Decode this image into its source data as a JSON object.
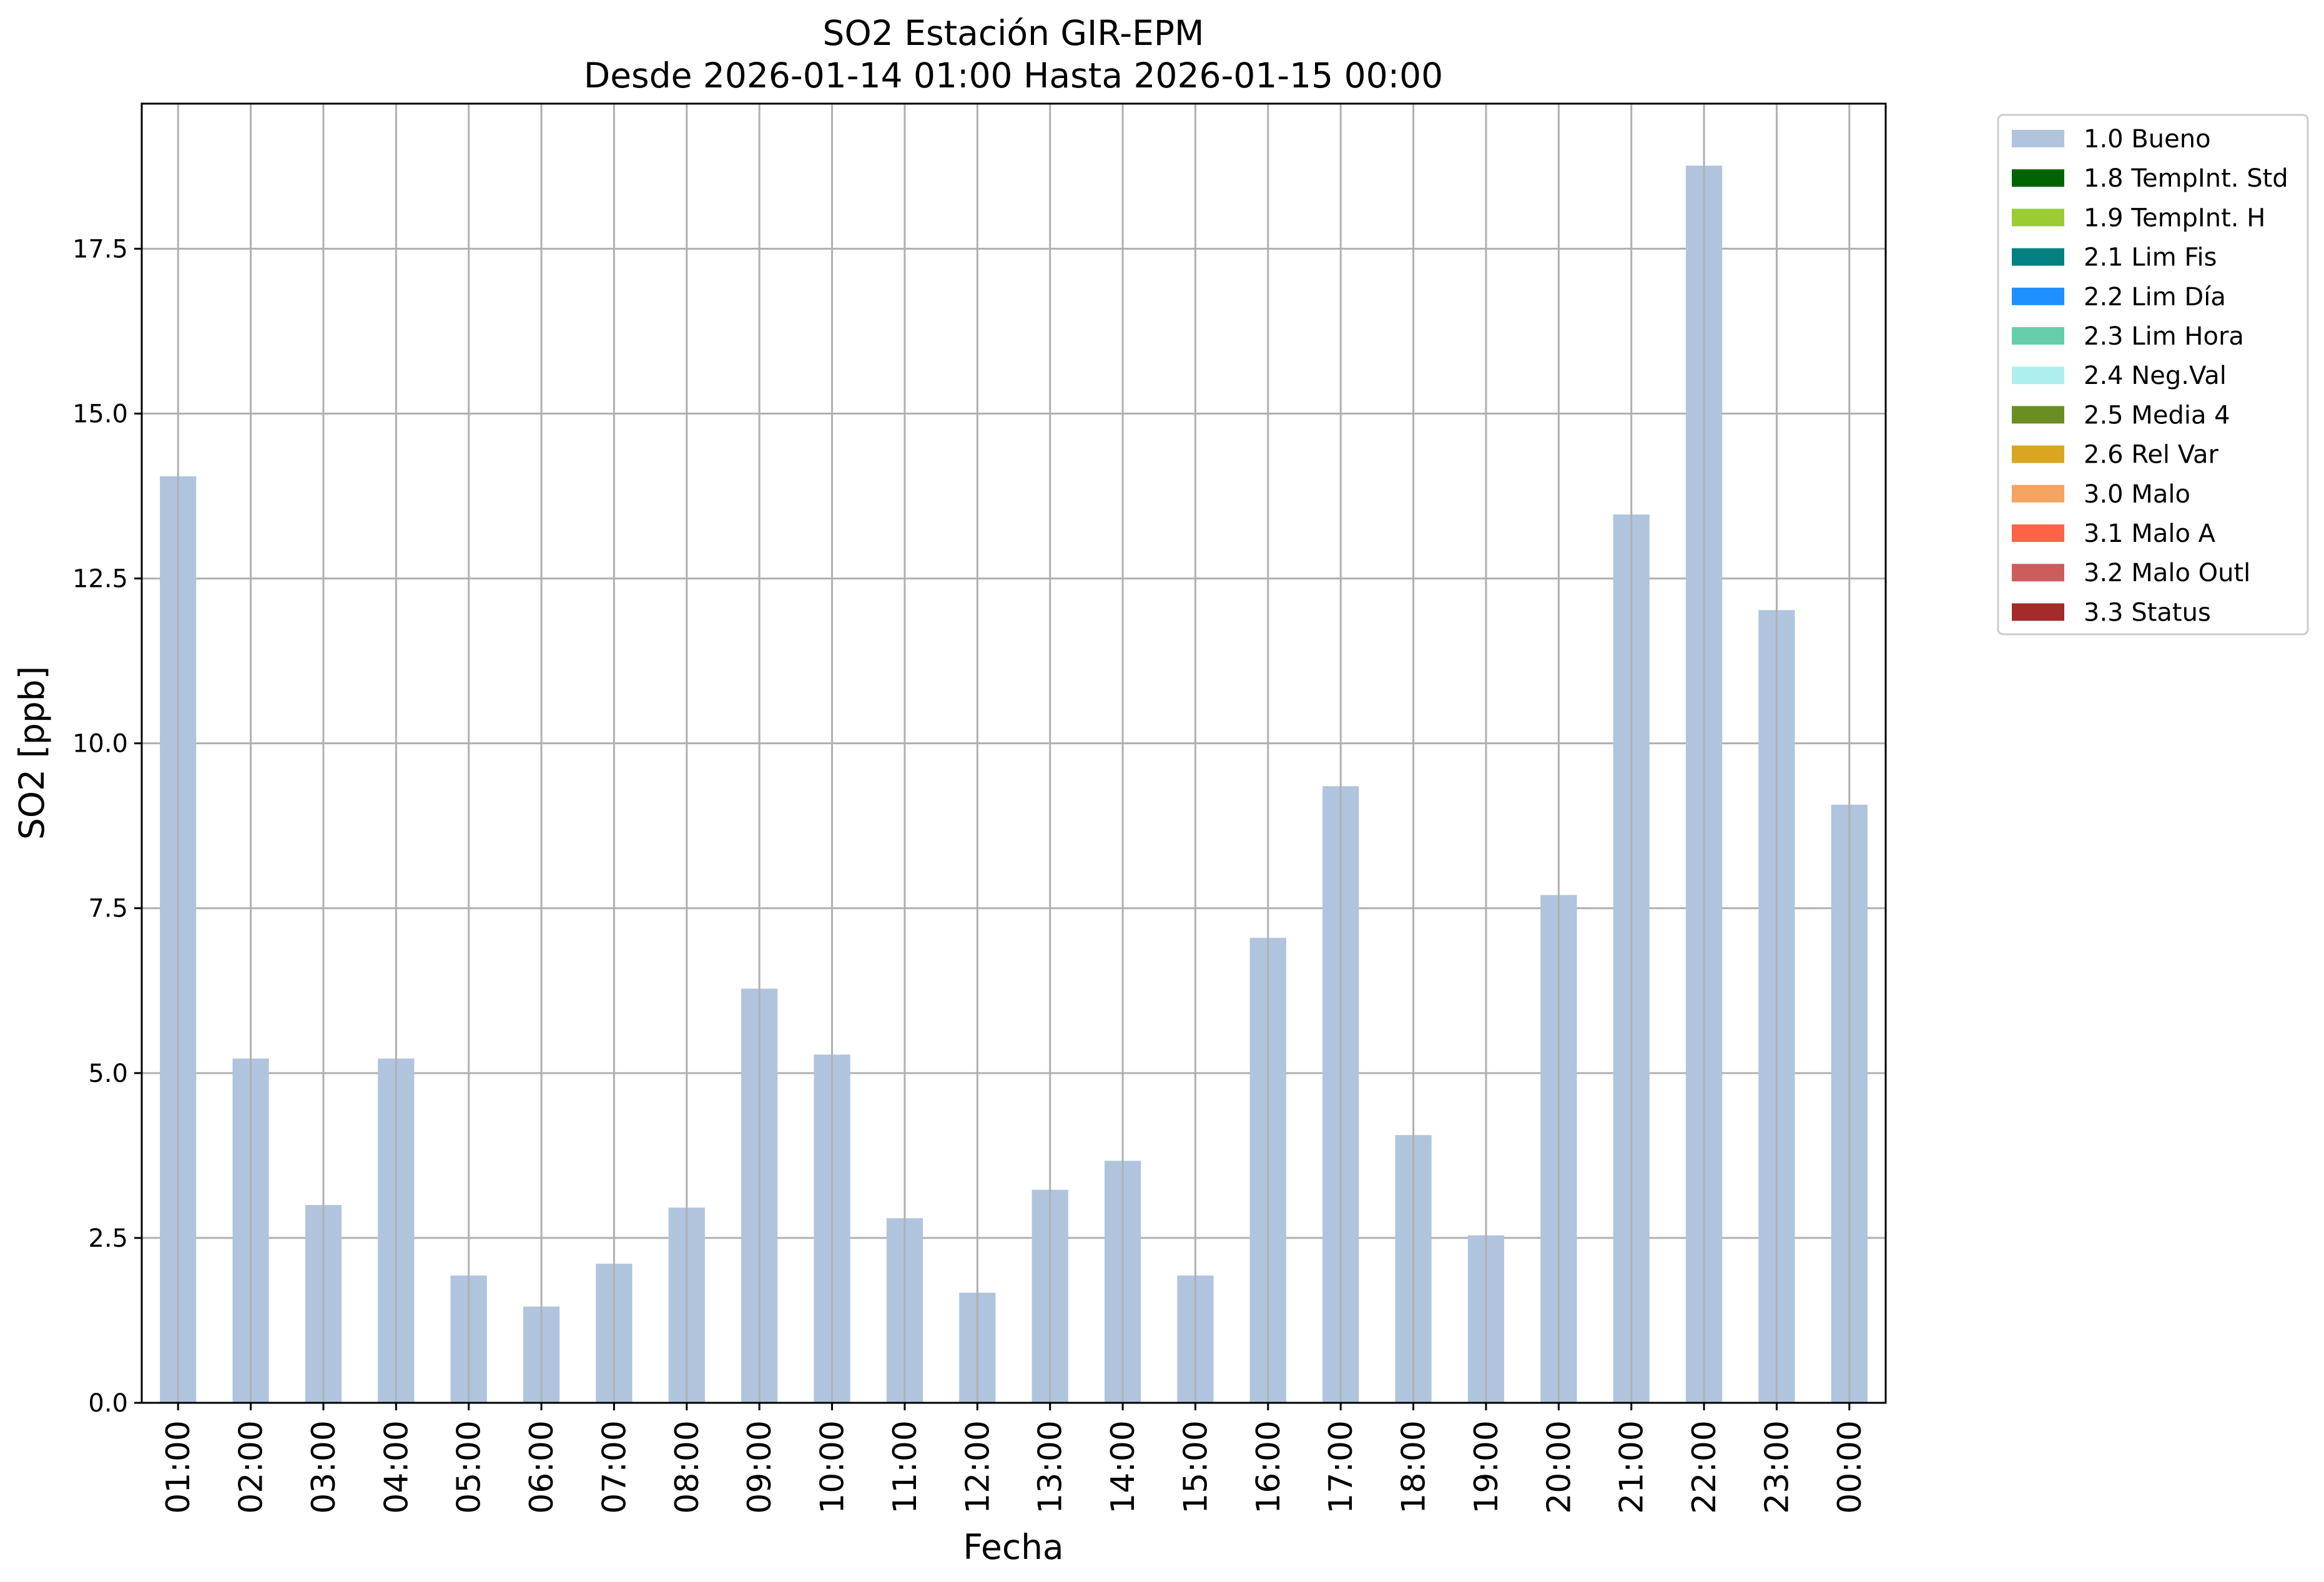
{
  "chart_data": {
    "type": "bar",
    "title": "SO2 Estación GIR-EPM",
    "subtitle": "Desde 2026-01-14 01:00 Hasta 2026-01-15 00:00",
    "xlabel": "Fecha",
    "ylabel": "SO2 [ppb]",
    "ylim": [
      0,
      19.7
    ],
    "yticks": [
      "0.0",
      "2.5",
      "5.0",
      "7.5",
      "10.0",
      "12.5",
      "15.0",
      "17.5"
    ],
    "grid": true,
    "legend_position": "outside top-right",
    "categories": [
      "01:00",
      "02:00",
      "03:00",
      "04:00",
      "05:00",
      "06:00",
      "07:00",
      "08:00",
      "09:00",
      "10:00",
      "11:00",
      "12:00",
      "13:00",
      "14:00",
      "15:00",
      "16:00",
      "17:00",
      "18:00",
      "19:00",
      "20:00",
      "21:00",
      "22:00",
      "23:00",
      "00:00"
    ],
    "series": [
      {
        "name": "1.0 Bueno",
        "color": "#b0c4de",
        "values": [
          14.05,
          5.22,
          3.0,
          5.22,
          1.93,
          1.46,
          2.11,
          2.96,
          6.28,
          5.28,
          2.8,
          1.67,
          3.23,
          3.67,
          1.93,
          7.05,
          9.35,
          4.06,
          2.54,
          7.7,
          13.47,
          18.76,
          12.02,
          9.07
        ]
      }
    ],
    "legend": [
      {
        "label": "1.0 Bueno",
        "color": "#b0c4de"
      },
      {
        "label": "1.8 TempInt. Std",
        "color": "#006400"
      },
      {
        "label": "1.9 TempInt. H",
        "color": "#9acd32"
      },
      {
        "label": "2.1 Lim Fis",
        "color": "#008080"
      },
      {
        "label": "2.2 Lim Día",
        "color": "#1e90ff"
      },
      {
        "label": "2.3 Lim Hora",
        "color": "#66cdaa"
      },
      {
        "label": "2.4 Neg.Val",
        "color": "#afeeee"
      },
      {
        "label": "2.5 Media 4",
        "color": "#6b8e23"
      },
      {
        "label": "2.6 Rel Var",
        "color": "#daa520"
      },
      {
        "label": "3.0 Malo",
        "color": "#f4a460"
      },
      {
        "label": "3.1 Malo A",
        "color": "#ff6347"
      },
      {
        "label": "3.2 Malo Outl",
        "color": "#cd5c5c"
      },
      {
        "label": "3.3 Status",
        "color": "#a52a2a"
      }
    ]
  }
}
